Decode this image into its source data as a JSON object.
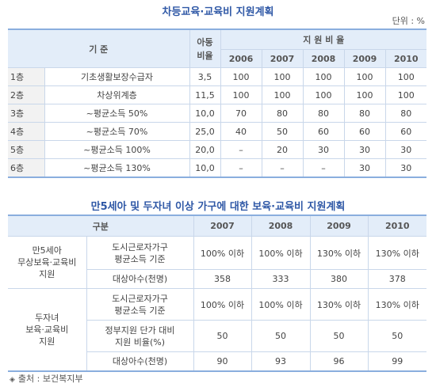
{
  "table1": {
    "title": "차등교육·교육비 지원계획",
    "unit": "단위 : %",
    "header": {
      "criteria": "기  준",
      "child_ratio": "아동\n비율",
      "support_ratio": "지 원 비 율",
      "years": [
        "2006",
        "2007",
        "2008",
        "2009",
        "2010"
      ]
    },
    "rows": [
      {
        "tier": "1층",
        "criteria": "기초생활보장수급자",
        "ratio": "3,5",
        "values": [
          "100",
          "100",
          "100",
          "100",
          "100"
        ]
      },
      {
        "tier": "2층",
        "criteria": "차상위계층",
        "ratio": "11,5",
        "values": [
          "100",
          "100",
          "100",
          "100",
          "100"
        ]
      },
      {
        "tier": "3층",
        "criteria": "~평균소득 50%",
        "ratio": "10,0",
        "values": [
          "70",
          "80",
          "80",
          "80",
          "80"
        ]
      },
      {
        "tier": "4층",
        "criteria": "~평균소득 70%",
        "ratio": "25,0",
        "values": [
          "40",
          "50",
          "60",
          "60",
          "60"
        ]
      },
      {
        "tier": "5층",
        "criteria": "~평균소득 100%",
        "ratio": "20,0",
        "values": [
          "–",
          "20",
          "30",
          "30",
          "30"
        ]
      },
      {
        "tier": "6층",
        "criteria": "~평균소득 130%",
        "ratio": "10,0",
        "values": [
          "–",
          "–",
          "–",
          "30",
          "30"
        ]
      }
    ]
  },
  "table2": {
    "title": "만5세아 및 두자녀 이상 가구에 대한 보육·교육비 지원계획",
    "header": {
      "category": "구분",
      "years": [
        "2007",
        "2008",
        "2009",
        "2010"
      ]
    },
    "groups": [
      {
        "label": "만5세아\n무상보육·교육비\n지원",
        "rows": [
          {
            "label": "도시근로자가구\n평균소득 기준",
            "values": [
              "100% 이하",
              "100% 이하",
              "130% 이하",
              "130% 이하"
            ]
          },
          {
            "label": "대상아수(천명)",
            "values": [
              "358",
              "333",
              "380",
              "378"
            ]
          }
        ]
      },
      {
        "label": "두자녀\n보육·교육비\n지원",
        "rows": [
          {
            "label": "도시근로자가구\n평균소득 기준",
            "values": [
              "100% 이하",
              "100% 이하",
              "130% 이하",
              "130% 이하"
            ]
          },
          {
            "label": "정부지원 단가 대비\n지원 비율(%)",
            "values": [
              "50",
              "50",
              "50",
              "50"
            ]
          },
          {
            "label": "대상아수(천명)",
            "values": [
              "90",
              "93",
              "96",
              "99"
            ]
          }
        ]
      }
    ]
  },
  "source": {
    "icon": "diamond-bullet-icon",
    "text": "출처 : 보건복지부"
  }
}
